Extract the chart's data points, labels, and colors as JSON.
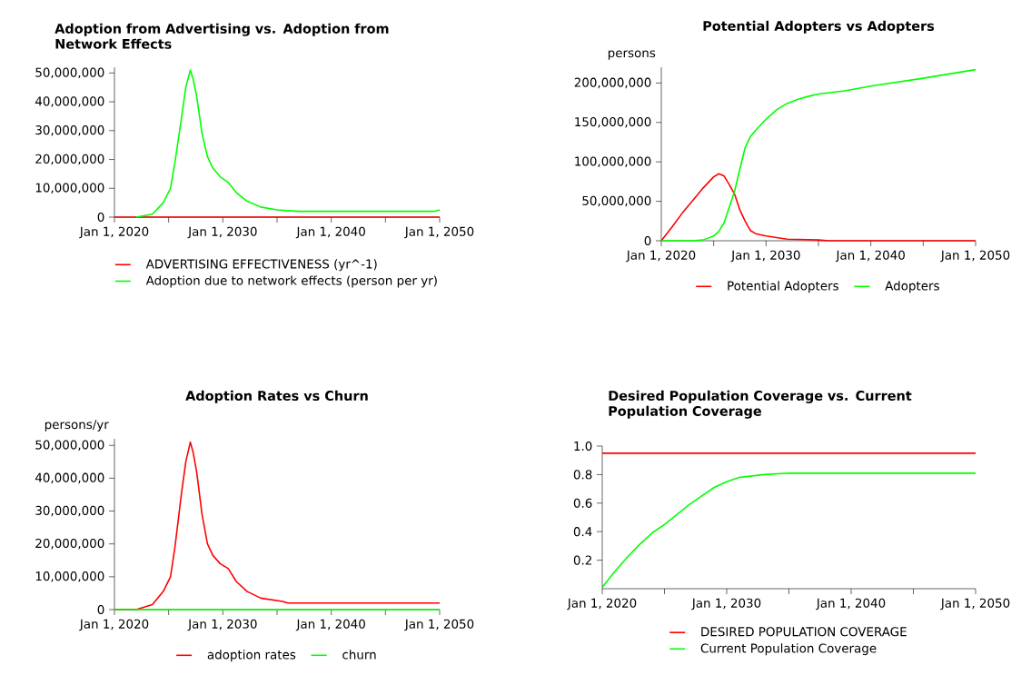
{
  "chart_data": [
    {
      "type": "line",
      "title": "Adoption from Advertising vs. Adoption from Network Effects",
      "legend": "bottom",
      "xlim": [
        "2020-01-01",
        "2050-01-01"
      ],
      "ylim": [
        0,
        52000000
      ],
      "xticks": [
        {
          "value": "2020-01-01",
          "label": "Jan 1, 2020"
        },
        {
          "value": "2025-01-01",
          "label": null
        },
        {
          "value": "2030-01-01",
          "label": "Jan 1, 2030"
        },
        {
          "value": "2035-01-01",
          "label": null
        },
        {
          "value": "2040-01-01",
          "label": "Jan 1, 2040"
        },
        {
          "value": "2045-01-01",
          "label": null
        },
        {
          "value": "2050-01-01",
          "label": "Jan 1, 2050"
        }
      ],
      "yticks": [
        0,
        {
          "value": 10000000,
          "label": "10,000,000"
        },
        {
          "value": 20000000,
          "label": "20,000,000"
        },
        {
          "value": 30000000,
          "label": "30,000,000"
        },
        {
          "value": 40000000,
          "label": "40,000,000"
        },
        {
          "value": 50000000,
          "label": "50,000,000"
        }
      ],
      "series": [
        {
          "name": "ADVERTISING EFFECTIVENESS (yr^-1)",
          "color": "#ff0000",
          "x": [
            "2020-01",
            "2050-01"
          ],
          "values": [
            0,
            0
          ]
        },
        {
          "name": "Adoption due to network effects (person per yr)",
          "color": "#00ff00",
          "x": [
            "2022-01",
            "2023-07",
            "2024-07",
            "2025-03",
            "2025-08",
            "2026-03",
            "2026-08",
            "2027-01",
            "2027-04",
            "2027-08",
            "2028-02",
            "2028-08",
            "2029-02",
            "2029-10",
            "2030-07",
            "2031-04",
            "2032-04",
            "2033-07",
            "2035-01",
            "2037-01",
            "2049-07",
            "2050-01"
          ],
          "values": [
            0,
            1000000,
            5000000,
            10000000,
            19000000,
            34000000,
            45000000,
            51000000,
            48000000,
            42000000,
            29000000,
            21000000,
            17000000,
            14000000,
            12000000,
            8500000,
            5500000,
            3500000,
            2500000,
            2000000,
            2000000,
            2500000
          ]
        }
      ]
    },
    {
      "type": "line",
      "title": "Potential Adopters vs Adopters",
      "ylabel": "persons",
      "legend": "bottom",
      "xlim": [
        "2020-01-01",
        "2050-01-01"
      ],
      "ylim": [
        0,
        220000000
      ],
      "xticks": [
        {
          "value": "2020-01-01",
          "label": "Jan 1, 2020"
        },
        {
          "value": "2025-01-01",
          "label": null
        },
        {
          "value": "2030-01-01",
          "label": "Jan 1, 2030"
        },
        {
          "value": "2035-01-01",
          "label": null
        },
        {
          "value": "2040-01-01",
          "label": "Jan 1, 2040"
        },
        {
          "value": "2045-01-01",
          "label": null
        },
        {
          "value": "2050-01-01",
          "label": "Jan 1, 2050"
        }
      ],
      "yticks": [
        0,
        {
          "value": 50000000,
          "label": "50,000,000"
        },
        {
          "value": 100000000,
          "label": "100,000,000"
        },
        {
          "value": 150000000,
          "label": "150,000,000"
        },
        {
          "value": 200000000,
          "label": "200,000,000"
        }
      ],
      "series": [
        {
          "name": "Potential Adopters",
          "color": "#ff0000",
          "x": [
            "2020-01",
            "2021-01",
            "2022-01",
            "2023-01",
            "2024-01",
            "2025-01",
            "2025-07",
            "2026-01",
            "2026-07",
            "2027-01",
            "2027-07",
            "2028-01",
            "2028-07",
            "2029-01",
            "2030-01",
            "2031-01",
            "2032-01",
            "2035-01",
            "2036-01",
            "2050-01"
          ],
          "values": [
            0,
            17000000,
            35000000,
            51000000,
            67000000,
            81000000,
            85000000,
            82000000,
            71000000,
            59000000,
            39000000,
            25000000,
            13000000,
            9000000,
            6000000,
            4000000,
            2000000,
            1000000,
            0,
            0
          ]
        },
        {
          "name": "Adopters",
          "color": "#00ff00",
          "x": [
            "2020-01",
            "2023-01",
            "2024-01",
            "2025-01",
            "2025-07",
            "2026-01",
            "2026-07",
            "2027-01",
            "2027-07",
            "2028-01",
            "2028-07",
            "2029-01",
            "2030-01",
            "2031-01",
            "2032-01",
            "2033-01",
            "2034-01",
            "2035-01",
            "2037-07",
            "2040-01",
            "2045-01",
            "2050-01"
          ],
          "values": [
            0,
            0,
            1000000,
            6000000,
            12000000,
            23000000,
            43000000,
            63000000,
            91000000,
            118000000,
            132000000,
            140000000,
            154000000,
            166000000,
            174000000,
            179000000,
            183000000,
            186000000,
            190000000,
            196000000,
            206000000,
            217000000
          ]
        }
      ]
    },
    {
      "type": "line",
      "title": "Adoption Rates vs Churn",
      "ylabel": "persons/yr",
      "legend": "bottom",
      "xlim": [
        "2020-01-01",
        "2050-01-01"
      ],
      "ylim": [
        0,
        52000000
      ],
      "xticks": [
        {
          "value": "2020-01-01",
          "label": "Jan 1, 2020"
        },
        {
          "value": "2025-01-01",
          "label": null
        },
        {
          "value": "2030-01-01",
          "label": "Jan 1, 2030"
        },
        {
          "value": "2035-01-01",
          "label": null
        },
        {
          "value": "2040-01-01",
          "label": "Jan 1, 2040"
        },
        {
          "value": "2045-01-01",
          "label": null
        },
        {
          "value": "2050-01-01",
          "label": "Jan 1, 2050"
        }
      ],
      "yticks": [
        0,
        {
          "value": 10000000,
          "label": "10,000,000"
        },
        {
          "value": 20000000,
          "label": "20,000,000"
        },
        {
          "value": 30000000,
          "label": "30,000,000"
        },
        {
          "value": 40000000,
          "label": "40,000,000"
        },
        {
          "value": 50000000,
          "label": "50,000,000"
        }
      ],
      "series": [
        {
          "name": "adoption rates",
          "color": "#ff0000",
          "x": [
            "2020-01",
            "2022-01",
            "2023-07",
            "2024-07",
            "2025-03",
            "2025-08",
            "2026-03",
            "2026-08",
            "2027-01",
            "2027-04",
            "2027-08",
            "2028-02",
            "2028-08",
            "2029-02",
            "2029-10",
            "2030-07",
            "2031-04",
            "2032-04",
            "2033-07",
            "2035-07",
            "2036-01",
            "2050-01"
          ],
          "values": [
            0,
            0,
            1500000,
            5500000,
            10000000,
            19000000,
            35000000,
            45000000,
            51000000,
            48000000,
            42000000,
            29000000,
            20000000,
            16500000,
            14000000,
            12500000,
            8500000,
            5500000,
            3500000,
            2500000,
            2000000,
            2000000
          ]
        },
        {
          "name": "churn",
          "color": "#00ff00",
          "x": [
            "2020-01",
            "2050-01"
          ],
          "values": [
            0,
            0
          ]
        }
      ]
    },
    {
      "type": "line",
      "title": "Desired Population Coverage vs. Current Population Coverage",
      "legend": "bottom",
      "xlim": [
        "2020-01-01",
        "2050-01-01"
      ],
      "ylim": [
        0,
        1.0
      ],
      "xticks": [
        {
          "value": "2020-01-01",
          "label": "Jan 1, 2020"
        },
        {
          "value": "2025-01-01",
          "label": null
        },
        {
          "value": "2030-01-01",
          "label": "Jan 1, 2030"
        },
        {
          "value": "2035-01-01",
          "label": null
        },
        {
          "value": "2040-01-01",
          "label": "Jan 1, 2040"
        },
        {
          "value": "2045-01-01",
          "label": null
        },
        {
          "value": "2050-01-01",
          "label": "Jan 1, 2050"
        }
      ],
      "yticks": [
        0.2,
        0.4,
        0.6,
        0.8,
        {
          "value": 1,
          "label": "1.0"
        }
      ],
      "series": [
        {
          "name": "DESIRED POPULATION COVERAGE",
          "color": "#ff0000",
          "x": [
            "2020-01",
            "2050-01"
          ],
          "values": [
            0.95,
            0.95
          ]
        },
        {
          "name": "Current Population Coverage",
          "color": "#00ff00",
          "x": [
            "2020-01",
            "2021-01",
            "2022-01",
            "2023-01",
            "2024-01",
            "2025-01",
            "2026-01",
            "2027-01",
            "2028-01",
            "2029-01",
            "2030-01",
            "2031-01",
            "2032-01",
            "2033-01",
            "2035-01",
            "2050-01"
          ],
          "values": [
            0.01,
            0.12,
            0.22,
            0.31,
            0.39,
            0.45,
            0.52,
            0.59,
            0.65,
            0.71,
            0.75,
            0.78,
            0.79,
            0.8,
            0.81,
            0.81
          ]
        }
      ]
    }
  ]
}
